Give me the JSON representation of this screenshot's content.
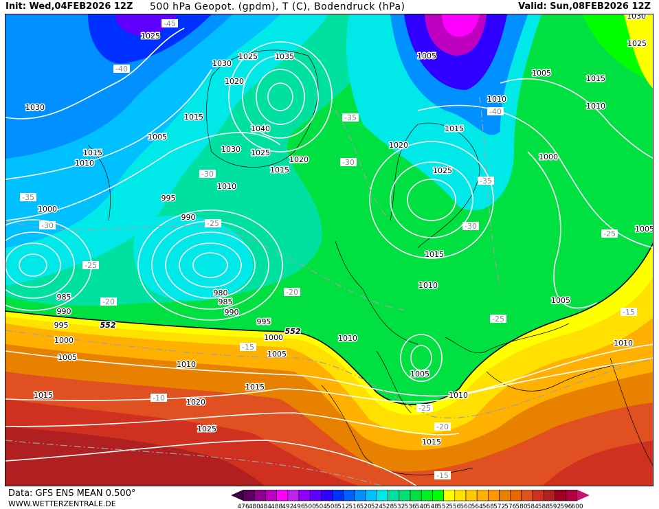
{
  "header": {
    "init": "Init: Wed,04FEB2026 12Z",
    "parameter": "500 hPa Geopot. (gpdm), T (C), Bodendruck (hPa)",
    "valid": "Valid: Sun,08FEB2026 12Z"
  },
  "footer": {
    "data_source": "Data: GFS ENS MEAN 0.500°",
    "website": "WWW.WETTERZENTRALE.DE"
  },
  "legend": {
    "labels": [
      "476",
      "480",
      "484",
      "488",
      "492",
      "496",
      "500",
      "504",
      "508",
      "512",
      "516",
      "520",
      "524",
      "528",
      "532",
      "536",
      "540",
      "548",
      "552",
      "556",
      "560",
      "564",
      "568",
      "572",
      "576",
      "580",
      "584",
      "588",
      "592",
      "596",
      "600"
    ],
    "colors": [
      "#5a0060",
      "#900090",
      "#c000c0",
      "#ff00ff",
      "#c020f0",
      "#9000ff",
      "#6000ff",
      "#3000ff",
      "#0030ff",
      "#0060ff",
      "#0090ff",
      "#00c0ff",
      "#00e8e8",
      "#00e0a0",
      "#00e070",
      "#00e040",
      "#00f020",
      "#00ff00",
      "#ffff00",
      "#ffe000",
      "#ffc800",
      "#ffb000",
      "#ff9800",
      "#e88000",
      "#e86800",
      "#e05020",
      "#d03020",
      "#b02020",
      "#a00020",
      "#b00040"
    ],
    "low_color": "#3a0040",
    "high_color": "#c81070"
  },
  "map": {
    "pressure_labels": [
      "1025",
      "1030",
      "1025",
      "1035",
      "1020",
      "1005",
      "1005",
      "1015",
      "1010",
      "1010",
      "1030",
      "1025",
      "1030",
      "1015",
      "1005",
      "1040",
      "1030",
      "1025",
      "1015",
      "1020",
      "1015",
      "1010",
      "1020",
      "1015",
      "1010",
      "1025",
      "1000",
      "995",
      "1000",
      "990",
      "1005",
      "1015",
      "1010",
      "980",
      "985",
      "990",
      "985",
      "990",
      "995",
      "995",
      "1000",
      "1000",
      "1005",
      "1005",
      "1010",
      "1010",
      "1005",
      "1010",
      "1015",
      "1015",
      "1020",
      "1025",
      "1015",
      "1005",
      "1010"
    ],
    "geopotential_labels": [
      "552",
      "552"
    ],
    "temperature_labels": [
      "-45",
      "-40",
      "-35",
      "-30",
      "-35",
      "-30",
      "-40",
      "-30",
      "-35",
      "-30",
      "-25",
      "-25",
      "-20",
      "-20",
      "-25",
      "-25",
      "-15",
      "-15",
      "-10",
      "-25",
      "-20",
      "-15"
    ],
    "colors": {
      "contour": "#ffffff",
      "temp_line": "#a0a0a0",
      "coast": "#000000"
    }
  }
}
